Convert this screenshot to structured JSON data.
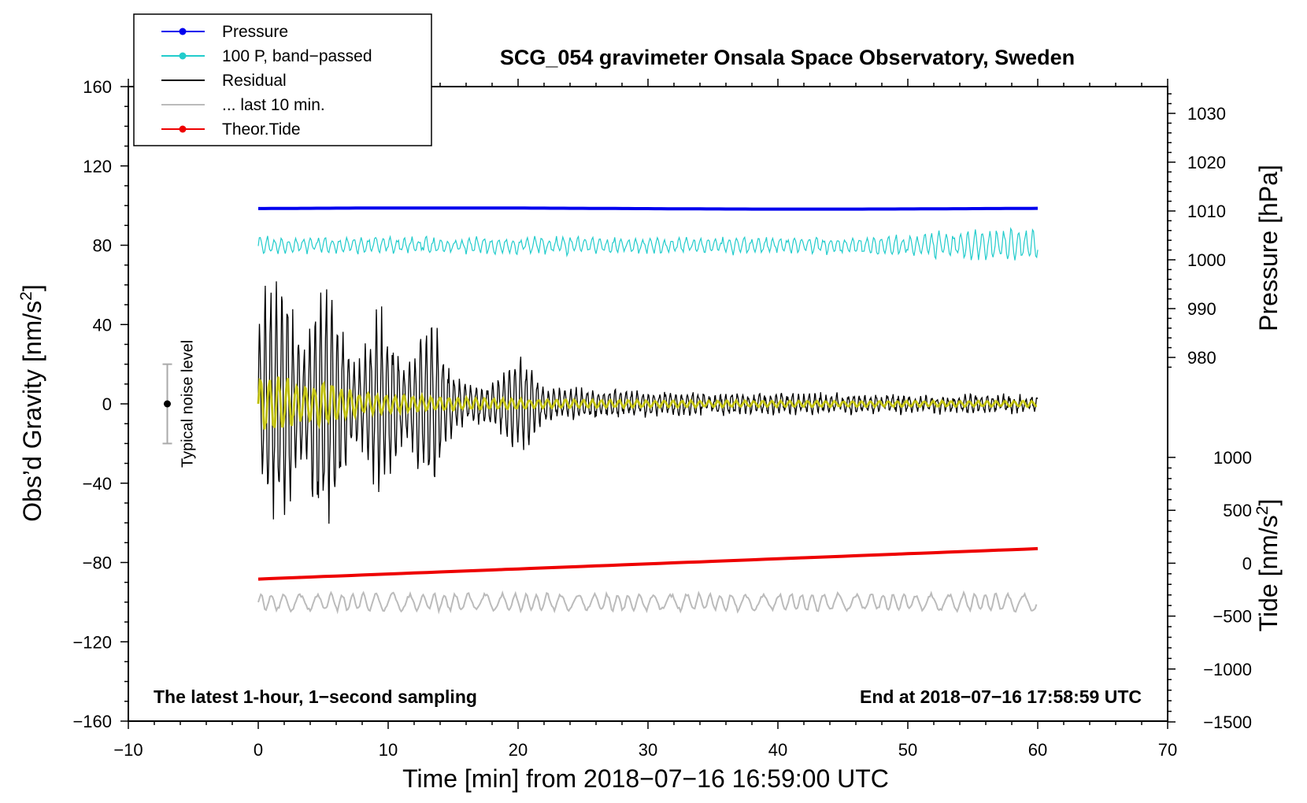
{
  "chart_data": {
    "type": "line",
    "title": "SCG_054 gravimeter Onsala Space Observatory, Sweden",
    "xlabel": "Time [min] from 2018−07−16 16:59:00 UTC",
    "ylabel_left": "Obs’d Gravity [nm/s",
    "ylabel_left_sup": "2",
    "ylabel_left_close": "]",
    "ylabel_right_pressure": "Pressure [hPa]",
    "ylabel_right_tide": "Tide [nm/s",
    "ylabel_right_tide_sup": "2",
    "ylabel_right_tide_close": "]",
    "xlim": [
      -10,
      70
    ],
    "ylim": [
      -160,
      160
    ],
    "x_ticks": [
      "−10",
      "0",
      "10",
      "20",
      "30",
      "40",
      "50",
      "60",
      "70"
    ],
    "y_ticks": [
      "160",
      "120",
      "80",
      "40",
      "0",
      "−40",
      "−80",
      "−120",
      "−160"
    ],
    "pressure_axis": {
      "ticks": [
        "1030",
        "1020",
        "1010",
        "1000",
        "990",
        "980"
      ],
      "values": [
        1030,
        1020,
        1010,
        1000,
        990,
        980
      ]
    },
    "tide_axis": {
      "ticks": [
        "1000",
        "500",
        "0",
        "−500",
        "−1000",
        "−1500"
      ],
      "values": [
        1000,
        500,
        0,
        -500,
        -1000,
        -1500
      ]
    },
    "annotations": {
      "left": "The latest 1-hour, 1−second sampling",
      "right": "End at 2018−07−16 17:58:59 UTC",
      "noise_label": "Typical noise level",
      "noise_range": [
        -20,
        20
      ]
    },
    "legend": {
      "position": "top-left",
      "entries": [
        {
          "label": "Pressure",
          "color": "#0000ee",
          "marker": true
        },
        {
          "label": "100 P, band−passed",
          "color": "#22cccc",
          "marker": true
        },
        {
          "label": "Residual",
          "color": "#000000",
          "marker": false
        },
        {
          "label": "... last 10 min.",
          "color": "#bbbbbb",
          "marker": false
        },
        {
          "label": "Theor.Tide",
          "color": "#ee0000",
          "marker": true
        }
      ]
    },
    "series": [
      {
        "name": "Pressure",
        "color": "#0000ee",
        "axis": "pressure",
        "x_range": [
          0,
          60
        ],
        "level": 1010.5
      },
      {
        "name": "100 P, band-passed",
        "color": "#22cccc",
        "axis": "gravity",
        "x_range": [
          0,
          60
        ],
        "offset": 80,
        "amplitude_range": [
          3,
          8
        ]
      },
      {
        "name": "Residual",
        "color": "#000000",
        "axis": "gravity",
        "x_range": [
          0,
          60
        ],
        "offset": 0,
        "peak_amplitude": 65
      },
      {
        "name": "Residual band-passed",
        "color": "#cccc00",
        "axis": "gravity",
        "x_range": [
          0,
          60
        ],
        "offset": 0,
        "peak_amplitude": 15
      },
      {
        "name": "... last 10 min.",
        "color": "#bbbbbb",
        "axis": "gravity",
        "x_range": [
          0,
          60
        ],
        "offset": -100,
        "amplitude_range": [
          3,
          8
        ]
      },
      {
        "name": "Theor.Tide",
        "color": "#ee0000",
        "axis": "tide",
        "x_range": [
          0,
          60.5
        ],
        "start": -150,
        "end": 140
      }
    ]
  }
}
